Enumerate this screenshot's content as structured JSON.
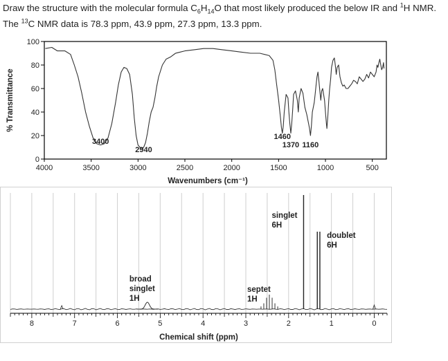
{
  "question": {
    "line1_parts": [
      "Draw the structure with the molecular formula C",
      "6",
      "H",
      "14",
      "O that most likely produced the below IR and ",
      "1",
      "H NMR."
    ],
    "line2_parts": [
      "The ",
      "13",
      "C NMR data is 78.3 ppm, 43.9 ppm, 27.3 ppm, 13.3 ppm."
    ]
  },
  "chart_data": [
    {
      "type": "line",
      "name": "IR spectrum",
      "xlabel": "Wavenumbers (cm⁻¹)",
      "ylabel": "% Transmittance",
      "xlim": [
        4000,
        350
      ],
      "ylim": [
        0,
        100
      ],
      "x_ticks": [
        4000,
        3500,
        3000,
        2500,
        2000,
        1500,
        1000,
        500
      ],
      "y_ticks": [
        0,
        20,
        40,
        60,
        80,
        100
      ],
      "peak_labels": [
        {
          "text": "3400",
          "x": 3400,
          "y": 13
        },
        {
          "text": "2940",
          "x": 2940,
          "y": 6
        },
        {
          "text": "1460",
          "x": 1460,
          "y": 17
        },
        {
          "text": "1370",
          "x": 1370,
          "y": 10
        },
        {
          "text": "1160",
          "x": 1160,
          "y": 10
        }
      ],
      "series": [
        {
          "name": "transmittance",
          "points": [
            [
              3990,
              94
            ],
            [
              3920,
              95
            ],
            [
              3860,
              92
            ],
            [
              3780,
              92
            ],
            [
              3720,
              89
            ],
            [
              3680,
              80
            ],
            [
              3640,
              70
            ],
            [
              3600,
              56
            ],
            [
              3560,
              40
            ],
            [
              3520,
              28
            ],
            [
              3480,
              18
            ],
            [
              3440,
              13
            ],
            [
              3400,
              12
            ],
            [
              3360,
              13
            ],
            [
              3320,
              18
            ],
            [
              3280,
              30
            ],
            [
              3240,
              48
            ],
            [
              3210,
              63
            ],
            [
              3180,
              74
            ],
            [
              3150,
              78
            ],
            [
              3120,
              77
            ],
            [
              3090,
              72
            ],
            [
              3060,
              55
            ],
            [
              3040,
              35
            ],
            [
              3020,
              20
            ],
            [
              3000,
              12
            ],
            [
              2980,
              10
            ],
            [
              2960,
              9
            ],
            [
              2940,
              10
            ],
            [
              2920,
              14
            ],
            [
              2900,
              22
            ],
            [
              2880,
              32
            ],
            [
              2860,
              40
            ],
            [
              2840,
              44
            ],
            [
              2820,
              52
            ],
            [
              2800,
              62
            ],
            [
              2780,
              70
            ],
            [
              2740,
              80
            ],
            [
              2700,
              85
            ],
            [
              2650,
              87
            ],
            [
              2600,
              90
            ],
            [
              2550,
              91
            ],
            [
              2500,
              92
            ],
            [
              2400,
              93
            ],
            [
              2300,
              94
            ],
            [
              2200,
              94
            ],
            [
              2100,
              93
            ],
            [
              2000,
              92
            ],
            [
              1900,
              91
            ],
            [
              1800,
              90
            ],
            [
              1700,
              90
            ],
            [
              1650,
              89
            ],
            [
              1600,
              88
            ],
            [
              1560,
              84
            ],
            [
              1540,
              76
            ],
            [
              1520,
              63
            ],
            [
              1500,
              50
            ],
            [
              1480,
              35
            ],
            [
              1470,
              27
            ],
            [
              1460,
              22
            ],
            [
              1450,
              28
            ],
            [
              1440,
              40
            ],
            [
              1420,
              55
            ],
            [
              1400,
              52
            ],
            [
              1390,
              40
            ],
            [
              1380,
              30
            ],
            [
              1370,
              22
            ],
            [
              1360,
              30
            ],
            [
              1350,
              42
            ],
            [
              1340,
              55
            ],
            [
              1320,
              58
            ],
            [
              1300,
              50
            ],
            [
              1290,
              40
            ],
            [
              1280,
              52
            ],
            [
              1260,
              60
            ],
            [
              1240,
              56
            ],
            [
              1220,
              44
            ],
            [
              1200,
              38
            ],
            [
              1180,
              30
            ],
            [
              1170,
              26
            ],
            [
              1160,
              20
            ],
            [
              1150,
              28
            ],
            [
              1140,
              40
            ],
            [
              1120,
              48
            ],
            [
              1110,
              55
            ],
            [
              1100,
              63
            ],
            [
              1090,
              70
            ],
            [
              1080,
              74
            ],
            [
              1070,
              66
            ],
            [
              1060,
              58
            ],
            [
              1050,
              50
            ],
            [
              1040,
              58
            ],
            [
              1030,
              60
            ],
            [
              1010,
              50
            ],
            [
              1000,
              40
            ],
            [
              990,
              30
            ],
            [
              985,
              26
            ],
            [
              975,
              36
            ],
            [
              965,
              50
            ],
            [
              955,
              60
            ],
            [
              945,
              68
            ],
            [
              935,
              78
            ],
            [
              920,
              84
            ],
            [
              905,
              86
            ],
            [
              895,
              80
            ],
            [
              885,
              72
            ],
            [
              875,
              78
            ],
            [
              860,
              80
            ],
            [
              845,
              70
            ],
            [
              830,
              65
            ],
            [
              815,
              62
            ],
            [
              800,
              63
            ],
            [
              780,
              60
            ],
            [
              760,
              60
            ],
            [
              740,
              62
            ],
            [
              720,
              64
            ],
            [
              700,
              67
            ],
            [
              680,
              66
            ],
            [
              660,
              64
            ],
            [
              640,
              70
            ],
            [
              620,
              68
            ],
            [
              600,
              66
            ],
            [
              580,
              68
            ],
            [
              560,
              72
            ],
            [
              540,
              69
            ],
            [
              520,
              74
            ],
            [
              500,
              72
            ],
            [
              480,
              70
            ],
            [
              460,
              74
            ],
            [
              450,
              80
            ],
            [
              440,
              78
            ],
            [
              430,
              82
            ],
            [
              420,
              85
            ],
            [
              410,
              80
            ],
            [
              400,
              76
            ],
            [
              390,
              78
            ],
            [
              380,
              82
            ],
            [
              375,
              77
            ]
          ]
        }
      ]
    },
    {
      "type": "line",
      "name": "1H NMR spectrum",
      "xlabel": "Chemical shift (ppm)",
      "xlim": [
        8.5,
        -0.3
      ],
      "x_ticks": [
        8,
        7,
        6,
        5,
        4,
        3,
        2,
        1,
        0
      ],
      "signals": [
        {
          "shift": 5.3,
          "label": "broad singlet",
          "integration": "1H"
        },
        {
          "shift": 2.45,
          "label": "septet",
          "integration": "1H"
        },
        {
          "shift": 1.65,
          "label": "singlet",
          "integration": "6H"
        },
        {
          "shift": 1.3,
          "label": "doublet",
          "integration": "6H"
        }
      ],
      "annotations": [
        {
          "lines": [
            "broad",
            "singlet",
            "1H"
          ]
        },
        {
          "lines": [
            "septet",
            "1H"
          ]
        },
        {
          "lines": [
            "singlet",
            "6H"
          ]
        },
        {
          "lines": [
            "doublet",
            "6H"
          ]
        }
      ]
    }
  ]
}
